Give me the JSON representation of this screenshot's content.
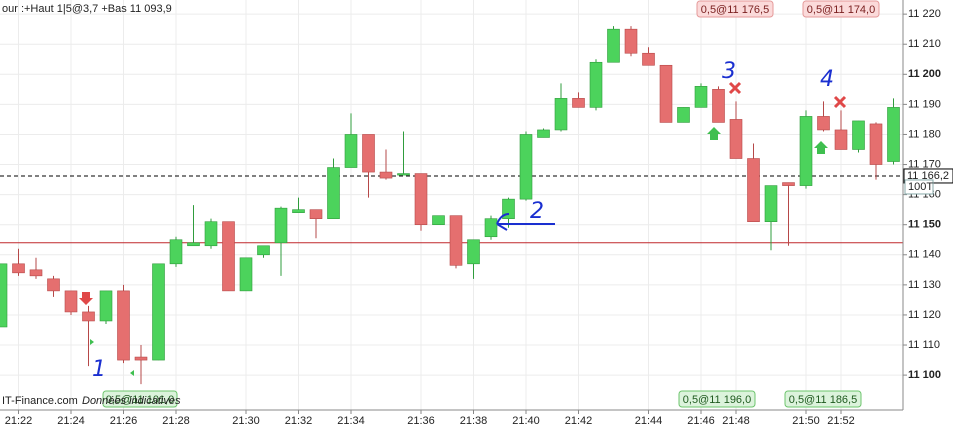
{
  "chart_data": {
    "type": "candlestick",
    "header": "our :+Haut 1|5@3,7 +Bas 11 093,9",
    "footer": [
      "IT-Finance.com",
      "Données indicatives"
    ],
    "categories": [
      null,
      "21:22",
      null,
      null,
      "21:24",
      null,
      null,
      "21:26",
      null,
      null,
      "21:28",
      null,
      null,
      null,
      "21:30",
      null,
      null,
      "21:32",
      null,
      null,
      "21:34",
      null,
      null,
      null,
      "21:36",
      null,
      null,
      "21:38",
      null,
      null,
      "21:40",
      null,
      null,
      "21:42",
      null,
      null,
      null,
      "21:44",
      null,
      null,
      "21:46",
      null,
      "21:48",
      null,
      null,
      null,
      "21:50",
      null,
      "21:52",
      null,
      null,
      null
    ],
    "open": [
      11116,
      11137,
      11135,
      11132,
      11128,
      11121,
      11118,
      11128,
      11106,
      11105,
      11137,
      11143,
      11143,
      11151,
      11128,
      11140,
      11144,
      11154,
      11155,
      11152,
      11169,
      11180,
      11167.5,
      11167,
      11167,
      11150,
      11153,
      11137,
      11146,
      11152,
      11158.5,
      11179,
      11181.5,
      11192,
      11189,
      11204,
      11215,
      11207,
      11203,
      11184,
      11189,
      11195,
      11185,
      11172,
      11151,
      11164,
      11163,
      11186,
      11181.5,
      11175,
      11183.5,
      11171
    ],
    "high": [
      11137,
      11142,
      11139,
      11133,
      11128,
      11123,
      11128,
      11130,
      11110,
      11137,
      11146,
      11156.5,
      11152,
      11151,
      11139,
      11143,
      11156,
      11159,
      11155,
      11172,
      11187,
      11180,
      11175,
      11181,
      11167,
      11153,
      11153,
      11145,
      11153,
      11159,
      11181,
      11182,
      11197,
      11194,
      11205,
      11216,
      11216,
      11209,
      11203,
      11189,
      11197,
      11196,
      11191,
      11177,
      11163,
      11164,
      11188,
      11191,
      11188,
      11184.5,
      11184,
      11192
    ],
    "low": [
      11116,
      11133,
      11132,
      11126,
      11120,
      11103,
      11117,
      11104,
      11097,
      11105,
      11136,
      11143,
      11142,
      11128,
      11128,
      11139,
      11133,
      11154,
      11145.5,
      11152,
      11169,
      11159,
      11165,
      11167,
      11148,
      11150,
      11135.5,
      11132,
      11145,
      11149,
      11158,
      11179,
      11181,
      11189,
      11188,
      11204,
      11206,
      11203,
      11184,
      11184,
      11189,
      11184,
      11172,
      11151,
      11141.5,
      11143,
      11162,
      11181,
      11175,
      11174,
      11165,
      11170
    ],
    "close": [
      11137,
      11134,
      11133,
      11128,
      11121,
      11118,
      11128,
      11105,
      11105,
      11137,
      11145,
      11144,
      11151,
      11128,
      11139,
      11143,
      11155.5,
      11155,
      11152,
      11169,
      11180,
      11167.5,
      11165.5,
      11167,
      11150,
      11153,
      11136.5,
      11145,
      11152,
      11158.5,
      11180,
      11181.5,
      11192,
      11189,
      11204,
      11215,
      11207,
      11203,
      11184,
      11189,
      11196,
      11184,
      11172,
      11151,
      11163,
      11163,
      11186,
      11181.5,
      11175,
      11184.5,
      11170,
      11189
    ],
    "up_color": "#4cd35c",
    "down_color": "#e56f6f",
    "ylim": [
      11088.4,
      11224.7
    ],
    "yticks": [
      {
        "value": 11100,
        "label": "11 100"
      },
      {
        "value": 11110,
        "label": "11 110"
      },
      {
        "value": 11120,
        "label": "11 120"
      },
      {
        "value": 11130,
        "label": "11 130"
      },
      {
        "value": 11140,
        "label": "11 140"
      },
      {
        "value": 11150,
        "label": "11 150"
      },
      {
        "value": 11160,
        "label": "11 160"
      },
      {
        "value": 11170,
        "label": "11 170"
      },
      {
        "value": 11180,
        "label": "11 180"
      },
      {
        "value": 11190,
        "label": "11 190"
      },
      {
        "value": 11200,
        "label": "11 200"
      },
      {
        "value": 11210,
        "label": "11 210"
      },
      {
        "value": 11220,
        "label": "11 220"
      }
    ],
    "grid": true,
    "price_line": {
      "value": 11166.2,
      "label": "11 166,2",
      "volume_label": "100T"
    },
    "support_line": {
      "value": 11144,
      "color": "#c0282d"
    },
    "order_labels": {
      "top": [
        "0,5@11 176,5",
        "0,5@11 174,0"
      ],
      "bottom": [
        "0,5@11 101,0",
        "0,5@11 196,0",
        "0,5@11 186,5"
      ]
    },
    "handwritten": [
      "1",
      "2",
      "3",
      "4"
    ]
  }
}
